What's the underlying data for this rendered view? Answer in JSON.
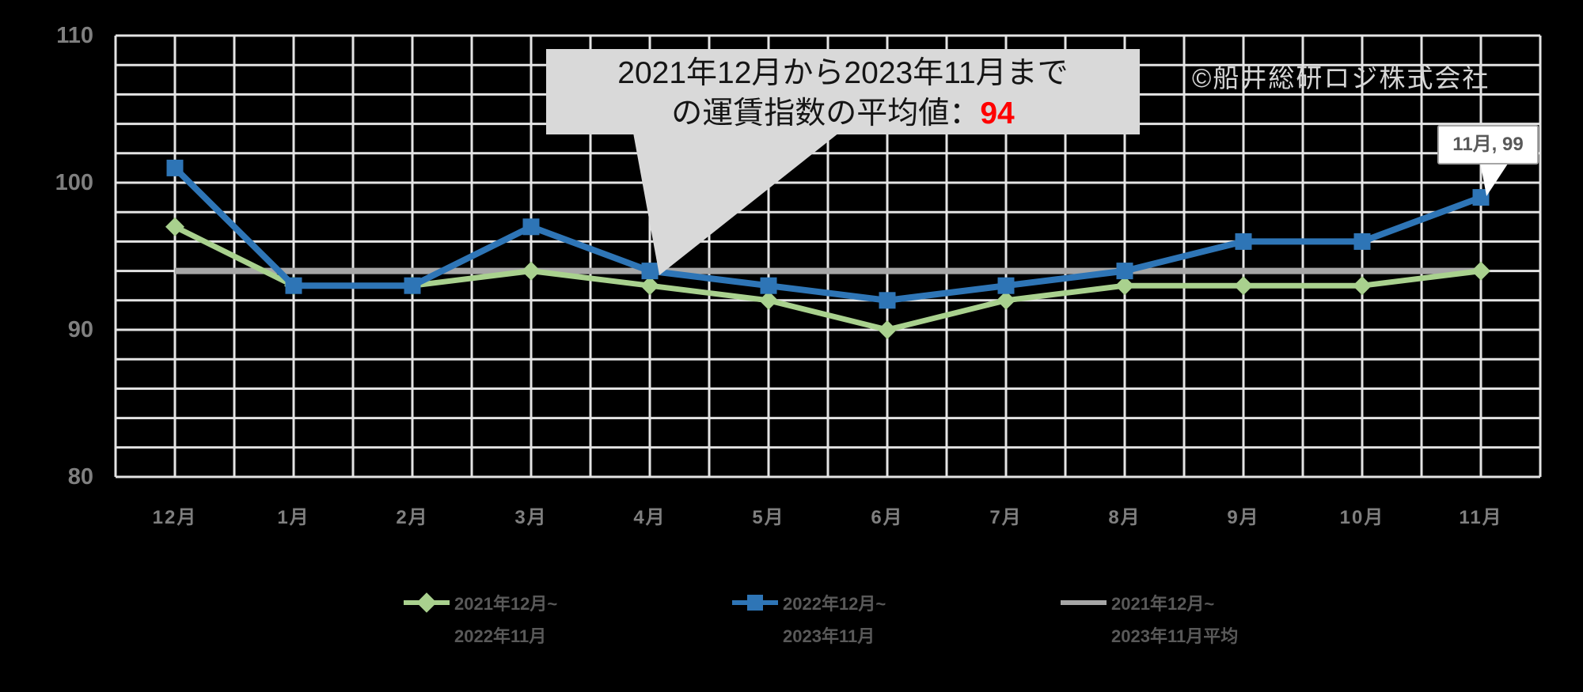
{
  "chart_data": {
    "type": "line",
    "categories": [
      "12月",
      "1月",
      "2月",
      "3月",
      "4月",
      "5月",
      "6月",
      "7月",
      "8月",
      "9月",
      "10月",
      "11月"
    ],
    "yticks": [
      "110",
      "100",
      "90",
      "80"
    ],
    "ylim": [
      80,
      110
    ],
    "grid_step_y": 2,
    "grid_step_x_cells_per_month": 2,
    "grid_on": true,
    "series": [
      {
        "name": "2021年12月~2022年11月",
        "color": "#A9D18E",
        "marker": "diamond",
        "values": [
          97,
          93,
          93,
          94,
          93,
          92,
          90,
          92,
          93,
          93,
          93,
          94
        ]
      },
      {
        "name": "2022年12月~2023年11月",
        "color": "#2E75B6",
        "marker": "square",
        "values": [
          101,
          93,
          93,
          97,
          94,
          93,
          92,
          93,
          94,
          96,
          96,
          99
        ]
      },
      {
        "name": "2021年12月~2023年11月平均",
        "color": "#A6A6A6",
        "marker": "none",
        "constant": 94
      }
    ],
    "legend": {
      "position": "bottom",
      "entries": [
        {
          "line1": "2021年12月~",
          "line2": "2022年11月",
          "color": "#A9D18E",
          "marker": "diamond"
        },
        {
          "line1": "2022年12月~",
          "line2": "2023年11月",
          "color": "#2E75B6",
          "marker": "square"
        },
        {
          "line1": "2021年12月~",
          "line2": "2023年11月平均",
          "color": "#A6A6A6",
          "marker": "none"
        }
      ]
    },
    "annotation": {
      "line1": "2021年12月から2023年11月まで",
      "line2_prefix": "の運賃指数の平均値：",
      "value": "94",
      "value_color": "#FF0000",
      "points_to": {
        "category": "4月",
        "value": 94
      }
    },
    "point_label": {
      "text": "11月, 99",
      "series": "2022年12月~2023年11月",
      "category": "11月",
      "value": 99
    },
    "watermark": "©船井総研ロジ株式会社",
    "colors": {
      "background": "#000000",
      "grid": "#E4E4E4",
      "axis_text": "#7F7F7F",
      "legend_text": "#595959",
      "annotation_bg": "#D9D9D9",
      "annotation_text": "#151515",
      "point_label_text": "#595959",
      "watermark_text": "#D6D6D6"
    }
  }
}
